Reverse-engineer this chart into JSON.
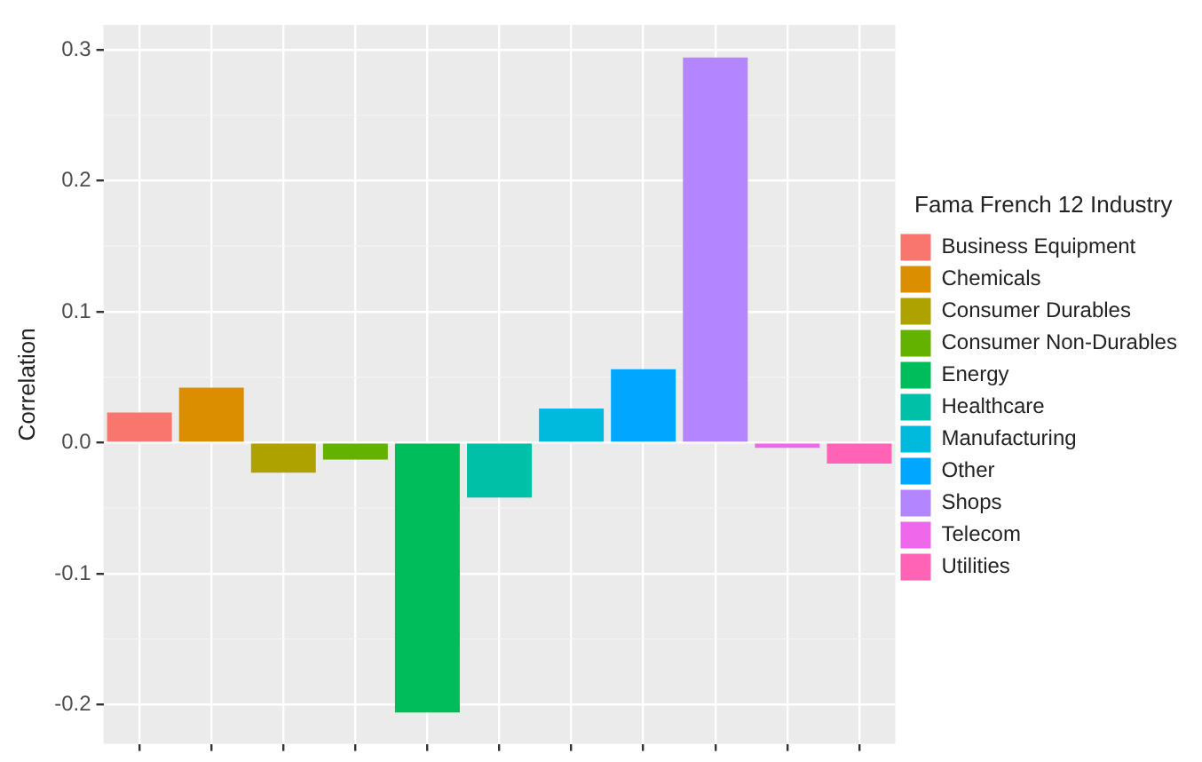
{
  "chart_data": {
    "type": "bar",
    "ylabel": "Correlation",
    "legend_title": "Fama French 12 Industry",
    "categories": [
      null,
      null,
      null,
      null,
      null,
      null,
      null,
      null,
      null,
      null,
      null
    ],
    "series": [
      {
        "name": "Business Equipment",
        "color": "#f8766d",
        "values": [
          0.023,
          null,
          null,
          null,
          null,
          null,
          null,
          null,
          null,
          null,
          null
        ]
      },
      {
        "name": "Chemicals",
        "color": "#db8e00",
        "values": [
          null,
          0.042,
          null,
          null,
          null,
          null,
          null,
          null,
          null,
          null,
          null
        ]
      },
      {
        "name": "Consumer Durables",
        "color": "#aea200",
        "values": [
          null,
          null,
          -0.023,
          null,
          null,
          null,
          null,
          null,
          null,
          null,
          null
        ]
      },
      {
        "name": "Consumer Non-Durables",
        "color": "#64b200",
        "values": [
          null,
          null,
          null,
          -0.013,
          null,
          null,
          null,
          null,
          null,
          null,
          null
        ]
      },
      {
        "name": "Energy",
        "color": "#00bd5c",
        "values": [
          null,
          null,
          null,
          null,
          -0.206,
          null,
          null,
          null,
          null,
          null,
          null
        ]
      },
      {
        "name": "Healthcare",
        "color": "#00c1a7",
        "values": [
          null,
          null,
          null,
          null,
          null,
          -0.042,
          null,
          null,
          null,
          null,
          null
        ]
      },
      {
        "name": "Manufacturing",
        "color": "#00bade",
        "values": [
          null,
          null,
          null,
          null,
          null,
          null,
          0.026,
          null,
          null,
          null,
          null
        ]
      },
      {
        "name": "Other",
        "color": "#00a6ff",
        "values": [
          null,
          null,
          null,
          null,
          null,
          null,
          null,
          0.056,
          null,
          null,
          null
        ]
      },
      {
        "name": "Shops",
        "color": "#b385ff",
        "values": [
          null,
          null,
          null,
          null,
          null,
          null,
          null,
          null,
          0.294,
          null,
          null
        ]
      },
      {
        "name": "Telecom",
        "color": "#ef67eb",
        "values": [
          null,
          null,
          null,
          null,
          null,
          null,
          null,
          null,
          null,
          -0.004,
          null
        ]
      },
      {
        "name": "Utilities",
        "color": "#ff63b6",
        "values": [
          null,
          null,
          null,
          null,
          null,
          null,
          null,
          null,
          null,
          null,
          -0.016
        ]
      }
    ],
    "ylim": [
      -0.23,
      0.319
    ],
    "yticks": [
      {
        "value": -0.2,
        "label": "-0.2"
      },
      {
        "value": -0.1,
        "label": "-0.1"
      },
      {
        "value": 0,
        "label": "0.0"
      },
      {
        "value": 0.1,
        "label": "0.1"
      },
      {
        "value": 0.2,
        "label": "0.2"
      },
      {
        "value": 0.3,
        "label": "0.3"
      }
    ],
    "grid": true,
    "legend": "right",
    "tick_labels": "y"
  }
}
